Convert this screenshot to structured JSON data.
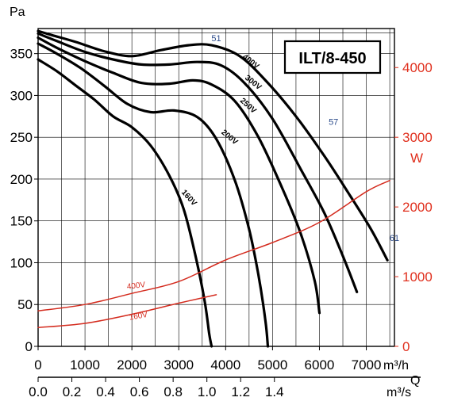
{
  "chart_data": {
    "type": "line",
    "title": "ILT/8-450",
    "y_unit": "Pa",
    "y2_unit": "W",
    "x_unit": "m³/h",
    "x2_unit": "m³/s",
    "x_axis_name": "Q",
    "xlim": [
      0,
      7600
    ],
    "ylim": [
      0,
      380
    ],
    "y2lim": [
      0,
      4560
    ],
    "x_ticks": [
      0,
      1000,
      2000,
      3000,
      4000,
      5000,
      6000,
      7000
    ],
    "x2_ticks": [
      "0.0",
      "0.2",
      "0.4",
      "0.6",
      "0.8",
      "1.0",
      "1.2",
      "1.4"
    ],
    "y_ticks": [
      0,
      50,
      100,
      150,
      200,
      250,
      300,
      350
    ],
    "y2_ticks": [
      0,
      1000,
      2000,
      3000,
      4000
    ],
    "grid": true,
    "colors": {
      "pressure": "#000000",
      "power": "#d42b1e",
      "point_label": "#2a4a8a",
      "right_axis": "#e0301e"
    },
    "series": [
      {
        "name": "400V",
        "axis": "left",
        "x": [
          0,
          300,
          800,
          1400,
          2000,
          2600,
          3200,
          3700,
          4300,
          4900,
          5500,
          6100,
          6600,
          7100,
          7450
        ],
        "y": [
          377,
          372,
          364,
          353,
          347,
          354,
          360,
          360,
          347,
          315,
          275,
          228,
          185,
          140,
          103
        ]
      },
      {
        "name": "300V",
        "axis": "left",
        "x": [
          0,
          400,
          1000,
          1600,
          2200,
          2800,
          3400,
          3900,
          4400,
          5000,
          5600,
          6100,
          6500,
          6800
        ],
        "y": [
          374,
          365,
          352,
          343,
          337,
          337,
          340,
          336,
          315,
          272,
          212,
          160,
          108,
          65
        ]
      },
      {
        "name": "250V",
        "axis": "left",
        "x": [
          0,
          400,
          1000,
          1600,
          2200,
          2800,
          3300,
          3700,
          4200,
          4700,
          5200,
          5600,
          5900,
          6000
        ],
        "y": [
          369,
          357,
          341,
          327,
          315,
          314,
          318,
          313,
          293,
          250,
          190,
          135,
          78,
          40
        ]
      },
      {
        "name": "200V",
        "axis": "left",
        "x": [
          0,
          400,
          900,
          1400,
          1900,
          2400,
          2900,
          3400,
          3800,
          4200,
          4500,
          4700,
          4850,
          4900
        ],
        "y": [
          362,
          350,
          333,
          312,
          290,
          280,
          282,
          274,
          248,
          198,
          140,
          85,
          30,
          0
        ]
      },
      {
        "name": "160V",
        "axis": "left",
        "x": [
          0,
          400,
          800,
          1200,
          1600,
          2000,
          2400,
          2800,
          3100,
          3350,
          3550,
          3650,
          3700
        ],
        "y": [
          343,
          329,
          312,
          295,
          275,
          262,
          240,
          204,
          165,
          110,
          55,
          15,
          0
        ]
      },
      {
        "name": "400V",
        "axis": "right",
        "x": [
          0,
          1000,
          2000,
          3000,
          4000,
          5000,
          6000,
          7000,
          7500
        ],
        "y": [
          510,
          600,
          760,
          930,
          1240,
          1490,
          1780,
          2220,
          2380
        ]
      },
      {
        "name": "160V",
        "axis": "right",
        "x": [
          0,
          1000,
          2000,
          3000,
          3800
        ],
        "y": [
          270,
          330,
          460,
          620,
          740
        ]
      }
    ],
    "annotations": [
      {
        "text": "51",
        "x": 3800,
        "y": 365
      },
      {
        "text": "57",
        "x": 6300,
        "y": 265
      },
      {
        "text": "61",
        "x": 7600,
        "y": 126
      }
    ]
  }
}
